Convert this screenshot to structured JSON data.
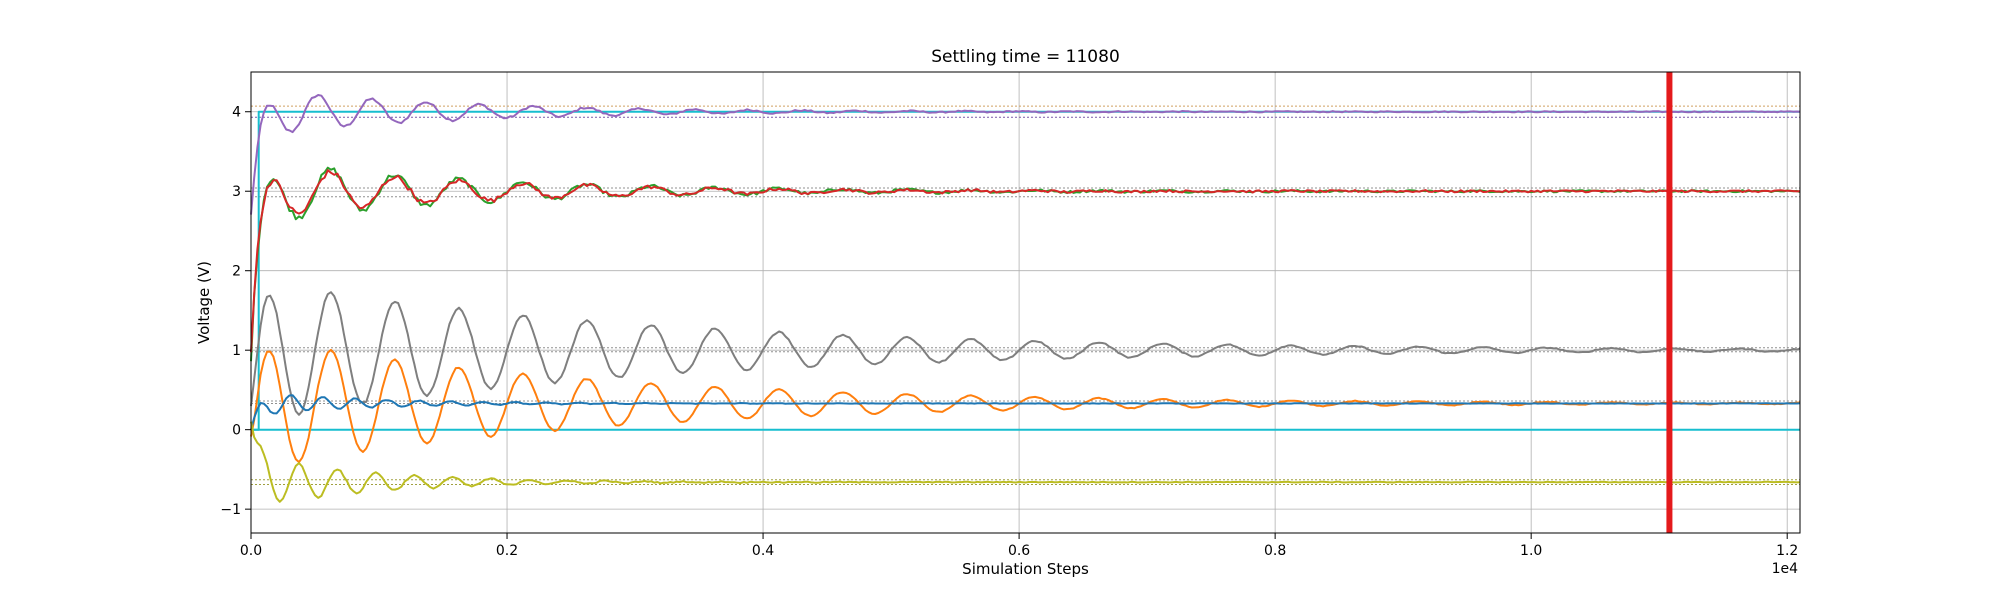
{
  "chart_data": {
    "type": "line",
    "title": "Settling time = 11080",
    "xlabel": "Simulation Steps",
    "ylabel": "Voltage (V)",
    "x_offset_text": "1e4",
    "xlim": [
      0,
      12100
    ],
    "ylim": [
      -1.3,
      4.5
    ],
    "grid": true,
    "legend": "none",
    "x_ticks": [
      0,
      2000,
      4000,
      6000,
      8000,
      10000,
      12000
    ],
    "x_tick_labels": [
      "0.0",
      "0.2",
      "0.4",
      "0.6",
      "0.8",
      "1.0",
      "1.2"
    ],
    "y_ticks": [
      -1,
      0,
      1,
      2,
      3,
      4
    ],
    "y_tick_labels": [
      "−1",
      "0",
      "1",
      "2",
      "3",
      "4"
    ],
    "settling_marker": {
      "x": 11080,
      "color": "#e41a1c"
    },
    "tolerance_bands": [
      {
        "y": 4.07,
        "color": "#d0a060"
      },
      {
        "y": 3.93,
        "color": "#7a5aa8"
      },
      {
        "y": 3.04,
        "color": "#909090"
      },
      {
        "y": 2.93,
        "color": "#909090"
      },
      {
        "y": 1.03,
        "color": "#909090"
      },
      {
        "y": 0.98,
        "color": "#909090"
      },
      {
        "y": 0.36,
        "color": "#909090"
      },
      {
        "y": 0.33,
        "color": "#909090"
      },
      {
        "y": -0.63,
        "color": "#a0a040"
      },
      {
        "y": -0.69,
        "color": "#a0a040"
      }
    ],
    "series": [
      {
        "color": "#17becf",
        "target": 4.0,
        "initial": 0.0,
        "amplitude": 0.0,
        "period": 500,
        "decay": 2000,
        "noise": 0.0,
        "step": true
      },
      {
        "color": "#17becf",
        "target": 0.0,
        "initial": 0.0,
        "amplitude": 0.0,
        "period": 500,
        "decay": 2000,
        "noise": 0.0,
        "step": false
      },
      {
        "color": "#9467bd",
        "target": 4.0,
        "initial": 2.7,
        "amplitude": 0.3,
        "period": 420,
        "decay": 1500,
        "noise": 0.03,
        "step": false
      },
      {
        "color": "#2ca02c",
        "target": 3.0,
        "initial": 0.9,
        "amplitude": 0.4,
        "period": 500,
        "decay": 1700,
        "noise": 0.06,
        "step": false
      },
      {
        "color": "#d62728",
        "target": 3.0,
        "initial": 1.0,
        "amplitude": 0.35,
        "period": 500,
        "decay": 1700,
        "noise": 0.06,
        "step": false
      },
      {
        "color": "#7f7f7f",
        "target": 1.0,
        "initial": 0.3,
        "amplitude": 0.9,
        "period": 500,
        "decay": 3000,
        "noise": 0.03,
        "step": false
      },
      {
        "color": "#ff7f0e",
        "target": 0.33,
        "initial": -0.1,
        "amplitude": 0.85,
        "period": 500,
        "decay": 2600,
        "noise": 0.02,
        "step": false
      },
      {
        "color": "#1f77b4",
        "target": 0.33,
        "initial": 0.0,
        "amplitude": 0.15,
        "period": 250,
        "decay": 900,
        "noise": 0.01,
        "step": false
      },
      {
        "color": "#bcbd22",
        "target": -0.66,
        "initial": 0.1,
        "amplitude": 0.35,
        "period": 300,
        "decay": 900,
        "noise": 0.02,
        "step": false
      }
    ]
  }
}
